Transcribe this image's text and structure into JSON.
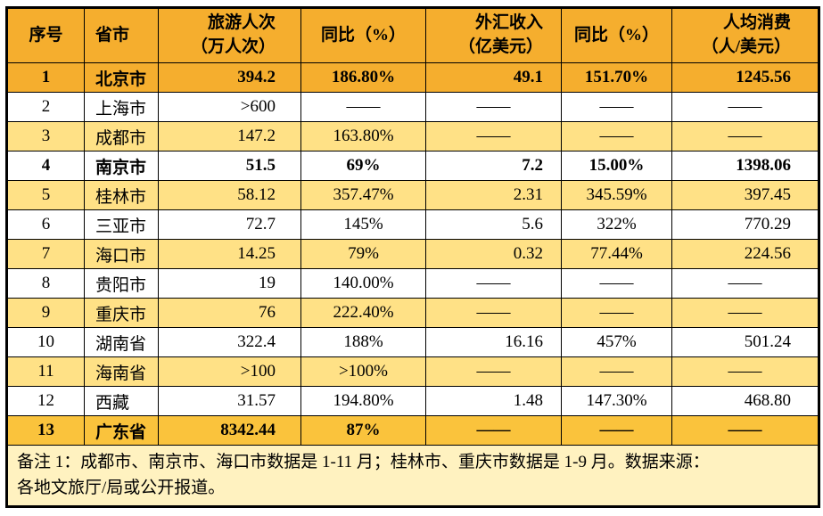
{
  "chart_data": {
    "type": "table",
    "title": "",
    "dash": "——",
    "columns": [
      {
        "key": "no",
        "label": "序号",
        "sub": ""
      },
      {
        "key": "city",
        "label": "省市",
        "sub": ""
      },
      {
        "key": "visits",
        "label": "旅游人次",
        "sub": "（万人次）"
      },
      {
        "key": "yoy_visits",
        "label": "同比（%）",
        "sub": ""
      },
      {
        "key": "forex",
        "label": "外汇收入",
        "sub": "（亿美元）"
      },
      {
        "key": "yoy_forex",
        "label": "同比（%）",
        "sub": ""
      },
      {
        "key": "per_capita",
        "label": "人均消费",
        "sub": "（人/美元）"
      }
    ],
    "rows": [
      {
        "cells": [
          "1",
          "北京市",
          "394.2",
          "186.80%",
          "49.1",
          "151.70%",
          "1245.56"
        ],
        "bold": true,
        "bg": "orange"
      },
      {
        "cells": [
          "2",
          "上海市",
          ">600",
          "——",
          "——",
          "——",
          "——"
        ],
        "bold": false,
        "bg": "white"
      },
      {
        "cells": [
          "3",
          "成都市",
          "147.2",
          "163.80%",
          "——",
          "——",
          "——"
        ],
        "bold": false,
        "bg": "yellow"
      },
      {
        "cells": [
          "4",
          "南京市",
          "51.5",
          "69%",
          "7.2",
          "15.00%",
          "1398.06"
        ],
        "bold": true,
        "bg": "white"
      },
      {
        "cells": [
          "5",
          "桂林市",
          "58.12",
          "357.47%",
          "2.31",
          "345.59%",
          "397.45"
        ],
        "bold": false,
        "bg": "yellow"
      },
      {
        "cells": [
          "6",
          "三亚市",
          "72.7",
          "145%",
          "5.6",
          "322%",
          "770.29"
        ],
        "bold": false,
        "bg": "white"
      },
      {
        "cells": [
          "7",
          "海口市",
          "14.25",
          "79%",
          "0.32",
          "77.44%",
          "224.56"
        ],
        "bold": false,
        "bg": "yellow"
      },
      {
        "cells": [
          "8",
          "贵阳市",
          "19",
          "140.00%",
          "——",
          "——",
          "——"
        ],
        "bold": false,
        "bg": "white"
      },
      {
        "cells": [
          "9",
          "重庆市",
          "76",
          "222.40%",
          "——",
          "——",
          "——"
        ],
        "bold": false,
        "bg": "yellow"
      },
      {
        "cells": [
          "10",
          "湖南省",
          "322.4",
          "188%",
          "16.16",
          "457%",
          "501.24"
        ],
        "bold": false,
        "bg": "white"
      },
      {
        "cells": [
          "11",
          "海南省",
          ">100",
          ">100%",
          "——",
          "——",
          "——"
        ],
        "bold": false,
        "bg": "yellow"
      },
      {
        "cells": [
          "12",
          "西藏",
          "31.57",
          "194.80%",
          "1.48",
          "147.30%",
          "468.80"
        ],
        "bold": false,
        "bg": "white"
      },
      {
        "cells": [
          "13",
          "广东省",
          "8342.44",
          "87%",
          "——",
          "——",
          "——"
        ],
        "bold": true,
        "bg": "gold"
      }
    ],
    "note_lines": [
      "备注 1：成都市、南京市、海口市数据是 1-11 月；桂林市、重庆市数据是 1-9 月。数据来源：",
      "各地文旅厅/局或公开报道。"
    ]
  },
  "colors": {
    "header_bg": "#F5AE2E",
    "row_yellow": "#FFE186",
    "row_gold": "#FAC33C",
    "note_bg": "#FFF2C0",
    "border": "#000000"
  }
}
